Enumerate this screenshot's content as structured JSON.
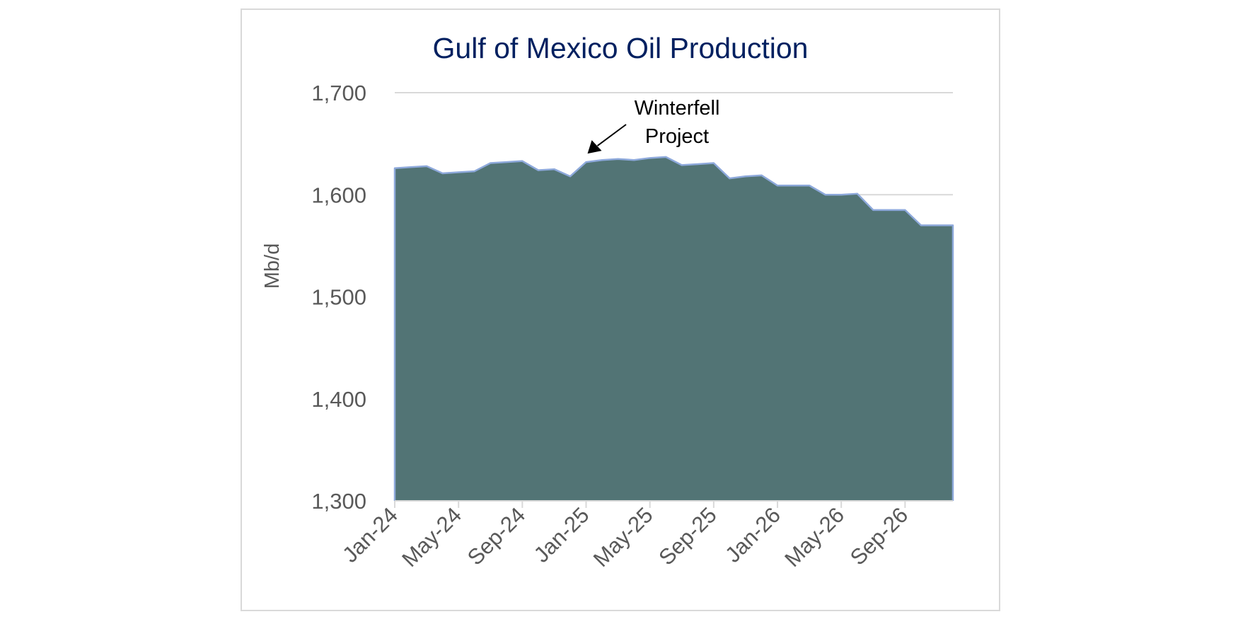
{
  "chart_data": {
    "type": "area",
    "title": "Gulf of Mexico Oil Production",
    "ylabel": "Mb/d",
    "xlabel": "",
    "ylim": [
      1300,
      1700
    ],
    "yticks": [
      "1,300",
      "1,400",
      "1,500",
      "1,600",
      "1,700"
    ],
    "ytick_values": [
      1300,
      1400,
      1500,
      1600,
      1700
    ],
    "xtick_labels": [
      "Jan-24",
      "May-24",
      "Sep-24",
      "Jan-25",
      "May-25",
      "Sep-25",
      "Jan-26",
      "May-26",
      "Sep-26"
    ],
    "x": [
      "Jan-24",
      "Feb-24",
      "Mar-24",
      "Apr-24",
      "May-24",
      "Jun-24",
      "Jul-24",
      "Aug-24",
      "Sep-24",
      "Oct-24",
      "Nov-24",
      "Dec-24",
      "Jan-25",
      "Feb-25",
      "Mar-25",
      "Apr-25",
      "May-25",
      "Jun-25",
      "Jul-25",
      "Aug-25",
      "Sep-25",
      "Oct-25",
      "Nov-25",
      "Dec-25",
      "Jan-26",
      "Feb-26",
      "Mar-26",
      "Apr-26",
      "May-26",
      "Jun-26",
      "Jul-26",
      "Aug-26",
      "Sep-26",
      "Oct-26",
      "Nov-26",
      "Dec-26"
    ],
    "values": [
      1626,
      1627,
      1628,
      1621,
      1622,
      1623,
      1631,
      1632,
      1633,
      1624,
      1625,
      1618,
      1632,
      1634,
      1635,
      1634,
      1636,
      1637,
      1629,
      1630,
      1631,
      1616,
      1618,
      1619,
      1609,
      1609,
      1609,
      1600,
      1600,
      1601,
      1585,
      1585,
      1585,
      1570,
      1570,
      1570
    ],
    "grid": "horizontal",
    "annotation": {
      "lines": [
        "Winterfell",
        "Project"
      ],
      "points_to": "Jan-25"
    },
    "colors": {
      "area_fill": "#527475",
      "area_line": "#8EA9DB",
      "grid": "#d9d9d9",
      "title": "#002060",
      "ticks": "#595959"
    }
  }
}
